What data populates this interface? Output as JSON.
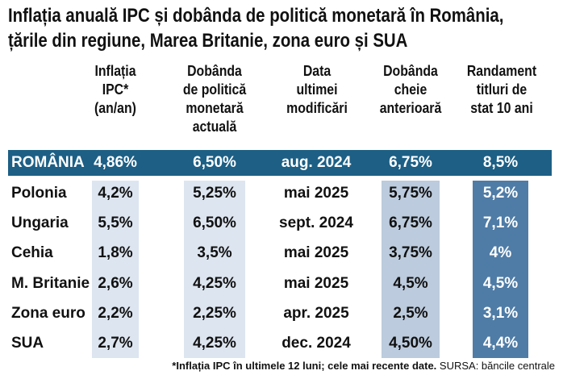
{
  "title": {
    "line1": "Inflația anuală IPC și dobânda de politică monetară în România,",
    "line2": "țările din regiune, Marea Britanie, zona euro și SUA"
  },
  "headers": {
    "inflation": "Inflația IPC* (an/an)",
    "policy_rate": "Dobânda de politică monetară actuală",
    "last_change": "Data ultimei modificări",
    "previous_rate": "Dobânda cheie anterioară",
    "bond_yield": "Randament titluri de stat 10 ani"
  },
  "header_lines": {
    "inflation": [
      "Inflația",
      "IPC*",
      "(an/an)"
    ],
    "policy_rate": [
      "Dobânda",
      "de politică",
      "monetară",
      "actuală"
    ],
    "last_change": [
      "Data",
      "ultimei",
      "modificări"
    ],
    "previous_rate": [
      "Dobânda",
      "cheie",
      "anterioară"
    ],
    "bond_yield": [
      "Randament",
      "titluri de",
      "stat 10 ani"
    ]
  },
  "rows": [
    {
      "country": "ROMÂNIA",
      "inflation": "4,86%",
      "policy_rate": "6,50%",
      "last_change": "aug. 2024",
      "previous_rate": "6,75%",
      "bond_yield": "8,5%"
    },
    {
      "country": "Polonia",
      "inflation": "4,2%",
      "policy_rate": "5,25%",
      "last_change": "mai 2025",
      "previous_rate": "5,75%",
      "bond_yield": "5,2%"
    },
    {
      "country": "Ungaria",
      "inflation": "5,5%",
      "policy_rate": "6,50%",
      "last_change": "sept. 2024",
      "previous_rate": "6,75%",
      "bond_yield": "7,1%"
    },
    {
      "country": "Cehia",
      "inflation": "1,8%",
      "policy_rate": "3,5%",
      "last_change": "mai 2025",
      "previous_rate": "3,75%",
      "bond_yield": "4%"
    },
    {
      "country": "M. Britanie",
      "inflation": "2,6%",
      "policy_rate": "4,25%",
      "last_change": "mai 2025",
      "previous_rate": "4,5%",
      "bond_yield": "4,5%"
    },
    {
      "country": "Zona euro",
      "inflation": "2,2%",
      "policy_rate": "2,25%",
      "last_change": "apr. 2025",
      "previous_rate": "2,5%",
      "bond_yield": "3,1%"
    },
    {
      "country": "SUA",
      "inflation": "2,7%",
      "policy_rate": "4,25%",
      "last_change": "dec. 2024",
      "previous_rate": "4,50%",
      "bond_yield": "4,4%"
    }
  ],
  "footnote": {
    "text": "*Inflația IPC în ultimele 12 luni; cele mai recente date.",
    "source": "SURSA: băncile centrale"
  },
  "colors": {
    "banner": "#1d5f85",
    "shade_light": "#dde5f0",
    "shade_mid": "#bccbdd",
    "shade_dark": "#4f7ca6"
  }
}
